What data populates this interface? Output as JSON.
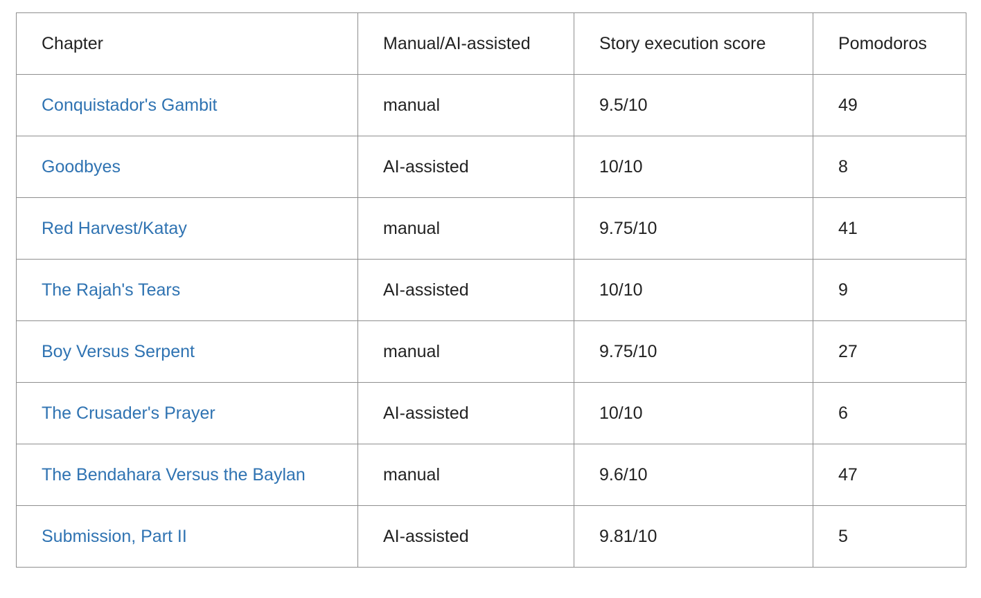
{
  "table": {
    "headers": [
      "Chapter",
      "Manual/AI-assisted",
      "Story execution score",
      "Pomodoros"
    ],
    "rows": [
      {
        "chapter": "Conquistador's Gambit",
        "mode": "manual",
        "score": "9.5/10",
        "pomodoros": "49"
      },
      {
        "chapter": "Goodbyes",
        "mode": "AI-assisted",
        "score": "10/10",
        "pomodoros": "8"
      },
      {
        "chapter": "Red Harvest/Katay",
        "mode": "manual",
        "score": "9.75/10",
        "pomodoros": "41"
      },
      {
        "chapter": "The Rajah's Tears",
        "mode": "AI-assisted",
        "score": "10/10",
        "pomodoros": "9"
      },
      {
        "chapter": "Boy Versus Serpent",
        "mode": "manual",
        "score": "9.75/10",
        "pomodoros": "27"
      },
      {
        "chapter": "The Crusader's Prayer",
        "mode": "AI-assisted",
        "score": "10/10",
        "pomodoros": "6"
      },
      {
        "chapter": "The Bendahara Versus the Baylan",
        "mode": "manual",
        "score": "9.6/10",
        "pomodoros": "47"
      },
      {
        "chapter": "Submission, Part II",
        "mode": "AI-assisted",
        "score": "9.81/10",
        "pomodoros": "5"
      }
    ]
  },
  "colors": {
    "link": "#2f73b2",
    "text": "#222222",
    "border": "#8e8e8e"
  }
}
